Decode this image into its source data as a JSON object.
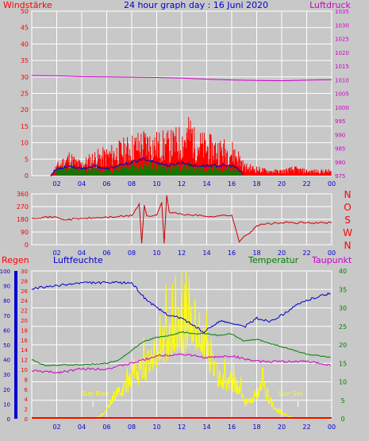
{
  "header": {
    "title": "24 hour graph day : 16 Juni 2020",
    "left_label": "Windstärke",
    "right_label": "Luftdruck"
  },
  "labels": {
    "regen": "Regen",
    "luftfeuchte": "Luftfeuchte",
    "temperatur": "Temperatur",
    "taupunkt": "Taupunkt",
    "sun_rise": "Sun Rise",
    "sun_set": "Sun Set"
  },
  "colors": {
    "background": "#c8c8c8",
    "grid": "#ffffff",
    "wind": "#ff0000",
    "wind_avg": "#0000cc",
    "wind_green": "#008000",
    "pressure": "#cc00cc",
    "direction": "#cc0000",
    "humidity": "#0000cc",
    "temperature": "#008000",
    "dewpoint": "#cc00cc",
    "solar": "#ffff00",
    "rain": "#ff0000",
    "title": "#0000cc"
  },
  "chart_data": [
    {
      "type": "bar",
      "name": "wind-pressure",
      "x_ticks": [
        "02",
        "04",
        "06",
        "08",
        "10",
        "12",
        "14",
        "16",
        "18",
        "20",
        "22",
        "00"
      ],
      "y_left_ticks": [
        0,
        5,
        10,
        15,
        20,
        25,
        30,
        35,
        40,
        45,
        50
      ],
      "y_right_ticks": [
        975,
        980,
        985,
        990,
        995,
        1000,
        1005,
        1010,
        1015,
        1020,
        1025,
        1030,
        1035
      ],
      "ylim_left": [
        0,
        50
      ],
      "ylim_right": [
        975,
        1035
      ],
      "xlim_hours": [
        0,
        24
      ],
      "wind_gust_envelope": {
        "hours": [
          0,
          1.5,
          2,
          2.5,
          3,
          3.5,
          4,
          5,
          6,
          7,
          8,
          9,
          10,
          11,
          12,
          12.8,
          13,
          14,
          15,
          16,
          16.5,
          17,
          18,
          19,
          20,
          21,
          22,
          23,
          24
        ],
        "values": [
          0,
          0,
          4,
          6,
          8,
          6,
          5,
          8,
          9,
          11,
          13,
          15,
          14,
          14,
          16,
          20,
          15,
          13,
          12,
          11,
          9,
          4,
          3,
          2,
          2,
          3,
          2,
          2,
          2
        ]
      },
      "wind_avg": {
        "hours": [
          0,
          1.5,
          2,
          3,
          4,
          5,
          6,
          7,
          8,
          9,
          10,
          11,
          12,
          13,
          14,
          15,
          16,
          16.5,
          17
        ],
        "values": [
          0,
          0,
          2,
          3,
          2,
          3,
          2,
          3,
          4,
          5,
          4,
          3,
          4,
          3,
          3,
          3,
          3,
          2,
          0
        ]
      },
      "pressure": {
        "hours": [
          0,
          2,
          4,
          6,
          8,
          10,
          12,
          14,
          16,
          18,
          20,
          22,
          24
        ],
        "values": [
          1011.5,
          1011.4,
          1011.1,
          1011.0,
          1010.9,
          1010.8,
          1010.6,
          1010.2,
          1009.9,
          1009.7,
          1009.6,
          1009.8,
          1010.0
        ]
      }
    },
    {
      "type": "line",
      "name": "wind-direction",
      "x_ticks": [
        "02",
        "04",
        "06",
        "08",
        "10",
        "12",
        "14",
        "16",
        "18",
        "20",
        "22",
        "00"
      ],
      "y_left_ticks": [
        0,
        90,
        180,
        270,
        360
      ],
      "y_right_labels": [
        "N",
        "W",
        "S",
        "O",
        "N"
      ],
      "ylim": [
        0,
        360
      ],
      "direction": {
        "hours": [
          0,
          1,
          2,
          2.4,
          3,
          4,
          5,
          6,
          7,
          8,
          8.6,
          8.8,
          9,
          9.2,
          9.5,
          10,
          10.4,
          10.6,
          10.8,
          11,
          12,
          13,
          14,
          15,
          16,
          16.6,
          17,
          17.5,
          18,
          19,
          20,
          21,
          22,
          23,
          24
        ],
        "values": [
          190,
          195,
          195,
          180,
          180,
          185,
          190,
          195,
          200,
          205,
          290,
          10,
          280,
          205,
          200,
          210,
          300,
          10,
          350,
          230,
          215,
          210,
          200,
          205,
          210,
          20,
          60,
          90,
          135,
          150,
          155,
          155,
          155,
          155,
          155
        ]
      }
    },
    {
      "type": "line",
      "name": "weather-detail",
      "x_ticks": [
        "02",
        "04",
        "06",
        "08",
        "10",
        "12",
        "14",
        "16",
        "18",
        "20",
        "22",
        "00"
      ],
      "humidity_ticks": [
        0,
        10,
        20,
        30,
        40,
        50,
        60,
        70,
        80,
        90,
        100
      ],
      "rain_ticks": [
        0,
        2,
        4,
        6,
        8,
        10,
        12,
        14,
        16,
        18,
        20,
        22,
        24,
        26,
        28,
        30
      ],
      "temp_ticks": [
        0,
        5,
        10,
        15,
        20,
        25,
        30,
        35,
        40
      ],
      "humidity_ylim": [
        0,
        100
      ],
      "temp_ylim": [
        0,
        40
      ],
      "humidity": {
        "hours": [
          0,
          2,
          4,
          6,
          8,
          9,
          10,
          11,
          12,
          13,
          13.8,
          14,
          15,
          16,
          17,
          18,
          19,
          20,
          21,
          22,
          23,
          24
        ],
        "values": [
          88,
          90,
          92,
          92,
          92,
          82,
          75,
          70,
          68,
          63,
          58,
          60,
          66,
          65,
          62,
          68,
          66,
          70,
          76,
          80,
          83,
          85
        ]
      },
      "temperature": {
        "hours": [
          0,
          1,
          2,
          4,
          6,
          7,
          8,
          9,
          10,
          11,
          12,
          13,
          14,
          15,
          16,
          17,
          18,
          19,
          20,
          21,
          22,
          23,
          24
        ],
        "values": [
          16.0,
          14.5,
          14.5,
          14.6,
          15.0,
          16.0,
          18.5,
          21.0,
          22.0,
          22.5,
          23.5,
          23.0,
          23.0,
          22.5,
          23.0,
          21.0,
          21.5,
          20.5,
          19.5,
          18.5,
          17.5,
          17.0,
          16.5
        ]
      },
      "dewpoint": {
        "hours": [
          0,
          2,
          4,
          6,
          8,
          10,
          12,
          14,
          16,
          18,
          20,
          22,
          24
        ],
        "values": [
          13.0,
          12.5,
          13.5,
          13.5,
          15.0,
          17.0,
          17.5,
          16.5,
          17.0,
          15.5,
          15.5,
          15.5,
          14.5
        ]
      },
      "solar_envelope": {
        "hours": [
          0,
          5,
          5.5,
          6,
          6.5,
          7,
          7.5,
          8,
          8.5,
          9,
          9.5,
          10,
          10.5,
          11,
          11.5,
          12,
          12.5,
          13,
          13.5,
          14,
          14.5,
          15,
          15.5,
          16,
          16.5,
          17,
          17.5,
          18,
          18.5,
          19,
          19.5,
          20,
          20.5,
          21,
          24
        ],
        "values": [
          0,
          0,
          1,
          3,
          7,
          10,
          12,
          14,
          16,
          18,
          20,
          22,
          26,
          28,
          30,
          31,
          33,
          33,
          28,
          25,
          18,
          14,
          12,
          13,
          11,
          6,
          5,
          9,
          12,
          7,
          3,
          2,
          1,
          0,
          0
        ]
      },
      "rain": {
        "hours": [
          0,
          24
        ],
        "values": [
          0,
          0
        ]
      }
    }
  ]
}
